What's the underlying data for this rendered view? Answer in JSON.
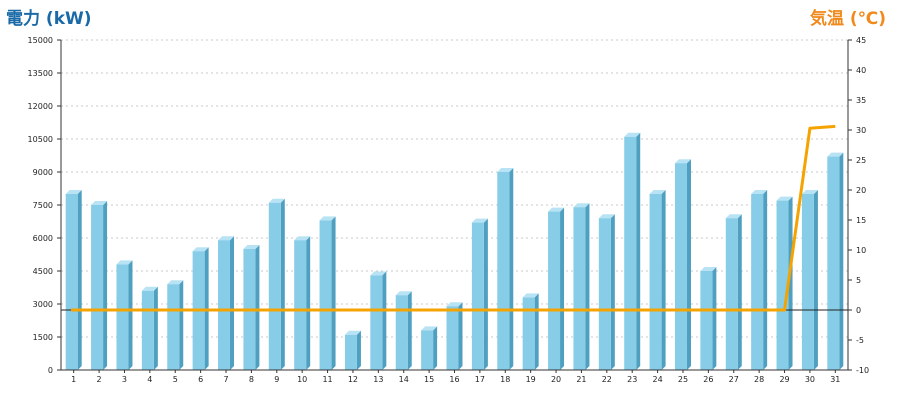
{
  "titles": {
    "left": "電力 (kW)",
    "right": "気温 (℃)"
  },
  "colors": {
    "bar_front": "#88cde8",
    "bar_top": "#b8e3f4",
    "bar_side": "#4f9fc0",
    "temp_line": "#f5a300",
    "grid": "#c8c8c8",
    "axis": "#333333"
  },
  "chart_data": {
    "type": "bar",
    "title": "",
    "categories": [
      "1",
      "2",
      "3",
      "4",
      "5",
      "6",
      "7",
      "8",
      "9",
      "10",
      "11",
      "12",
      "13",
      "14",
      "15",
      "16",
      "17",
      "18",
      "19",
      "20",
      "21",
      "22",
      "23",
      "24",
      "25",
      "26",
      "27",
      "28",
      "29",
      "30",
      "31"
    ],
    "series": [
      {
        "name": "電力 (kW)",
        "type": "bar",
        "axis": "left",
        "values": [
          8000,
          7500,
          4800,
          3600,
          3900,
          5400,
          5900,
          5500,
          7600,
          5900,
          6800,
          1600,
          4300,
          3400,
          1800,
          2900,
          6700,
          9000,
          3300,
          7200,
          7400,
          6900,
          10600,
          8000,
          9400,
          4500,
          6900,
          8000,
          7700,
          8000,
          9700
        ]
      },
      {
        "name": "気温 (℃)",
        "type": "line",
        "axis": "right",
        "values": [
          0,
          0,
          0,
          0,
          0,
          0,
          0,
          0,
          0,
          0,
          0,
          0,
          0,
          0,
          0,
          0,
          0,
          0,
          0,
          0,
          0,
          0,
          0,
          0,
          0,
          0,
          0,
          0,
          0,
          30.3,
          30.6
        ]
      }
    ],
    "left_axis": {
      "label": "電力 (kW)",
      "ylim": [
        0,
        15000
      ],
      "ticks": [
        "0",
        "1500",
        "3000",
        "4500",
        "6000",
        "7500",
        "9000",
        "10500",
        "12000",
        "13500",
        "15000"
      ]
    },
    "right_axis": {
      "label": "気温 (℃)",
      "ylim": [
        -10,
        45
      ],
      "ticks": [
        "-10",
        "-5",
        "0",
        "5",
        "10",
        "15",
        "20",
        "25",
        "30",
        "35",
        "40",
        "45"
      ]
    },
    "grid": true,
    "legend": "none"
  }
}
